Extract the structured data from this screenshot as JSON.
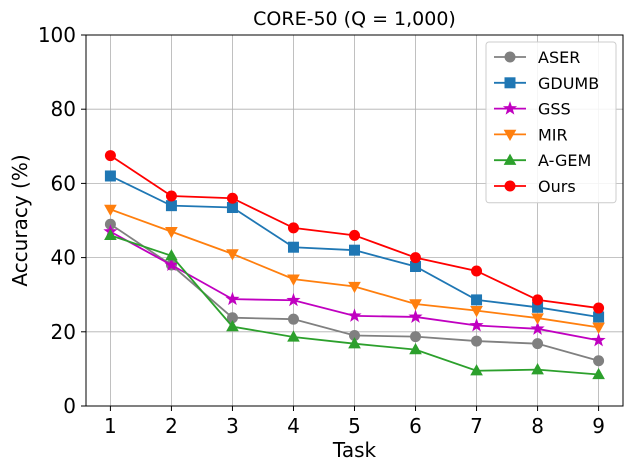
{
  "chart_data": {
    "type": "line",
    "title": "CORE-50 (Q = 1,000)",
    "xlabel": "Task",
    "ylabel": "Accuracy (%)",
    "x": [
      1,
      2,
      3,
      4,
      5,
      6,
      7,
      8,
      9
    ],
    "xlim": [
      0.6,
      9.4
    ],
    "ylim": [
      0,
      100
    ],
    "yticks": [
      0,
      20,
      40,
      60,
      80,
      100
    ],
    "grid": true,
    "legend_position": "top-right",
    "series": [
      {
        "name": "ASER",
        "color": "#808080",
        "marker": "circle",
        "values": [
          49,
          38,
          23.8,
          23.4,
          19.0,
          18.7,
          17.5,
          16.8,
          12.2
        ]
      },
      {
        "name": "GDUMB",
        "color": "#1f77b4",
        "marker": "square",
        "values": [
          62,
          54,
          53.5,
          42.8,
          42,
          37.6,
          28.6,
          26.6,
          24
        ]
      },
      {
        "name": "GSS",
        "color": "#c000c0",
        "marker": "star",
        "values": [
          47,
          38,
          28.8,
          28.5,
          24.3,
          24.0,
          21.7,
          20.8,
          17.7
        ]
      },
      {
        "name": "MIR",
        "color": "#ff7f0e",
        "marker": "triangle-down",
        "values": [
          53,
          47,
          41,
          34.2,
          32.2,
          27.5,
          25.7,
          23.7,
          21.2
        ]
      },
      {
        "name": "A-GEM",
        "color": "#2ca02c",
        "marker": "triangle-up",
        "values": [
          46,
          40.5,
          21.4,
          18.6,
          16.8,
          15.2,
          9.5,
          9.8,
          8.5
        ]
      },
      {
        "name": "Ours",
        "color": "#ff0000",
        "marker": "circle",
        "values": [
          67.5,
          56.6,
          56,
          48,
          46,
          40,
          36.4,
          28.6,
          26.4
        ]
      }
    ]
  }
}
